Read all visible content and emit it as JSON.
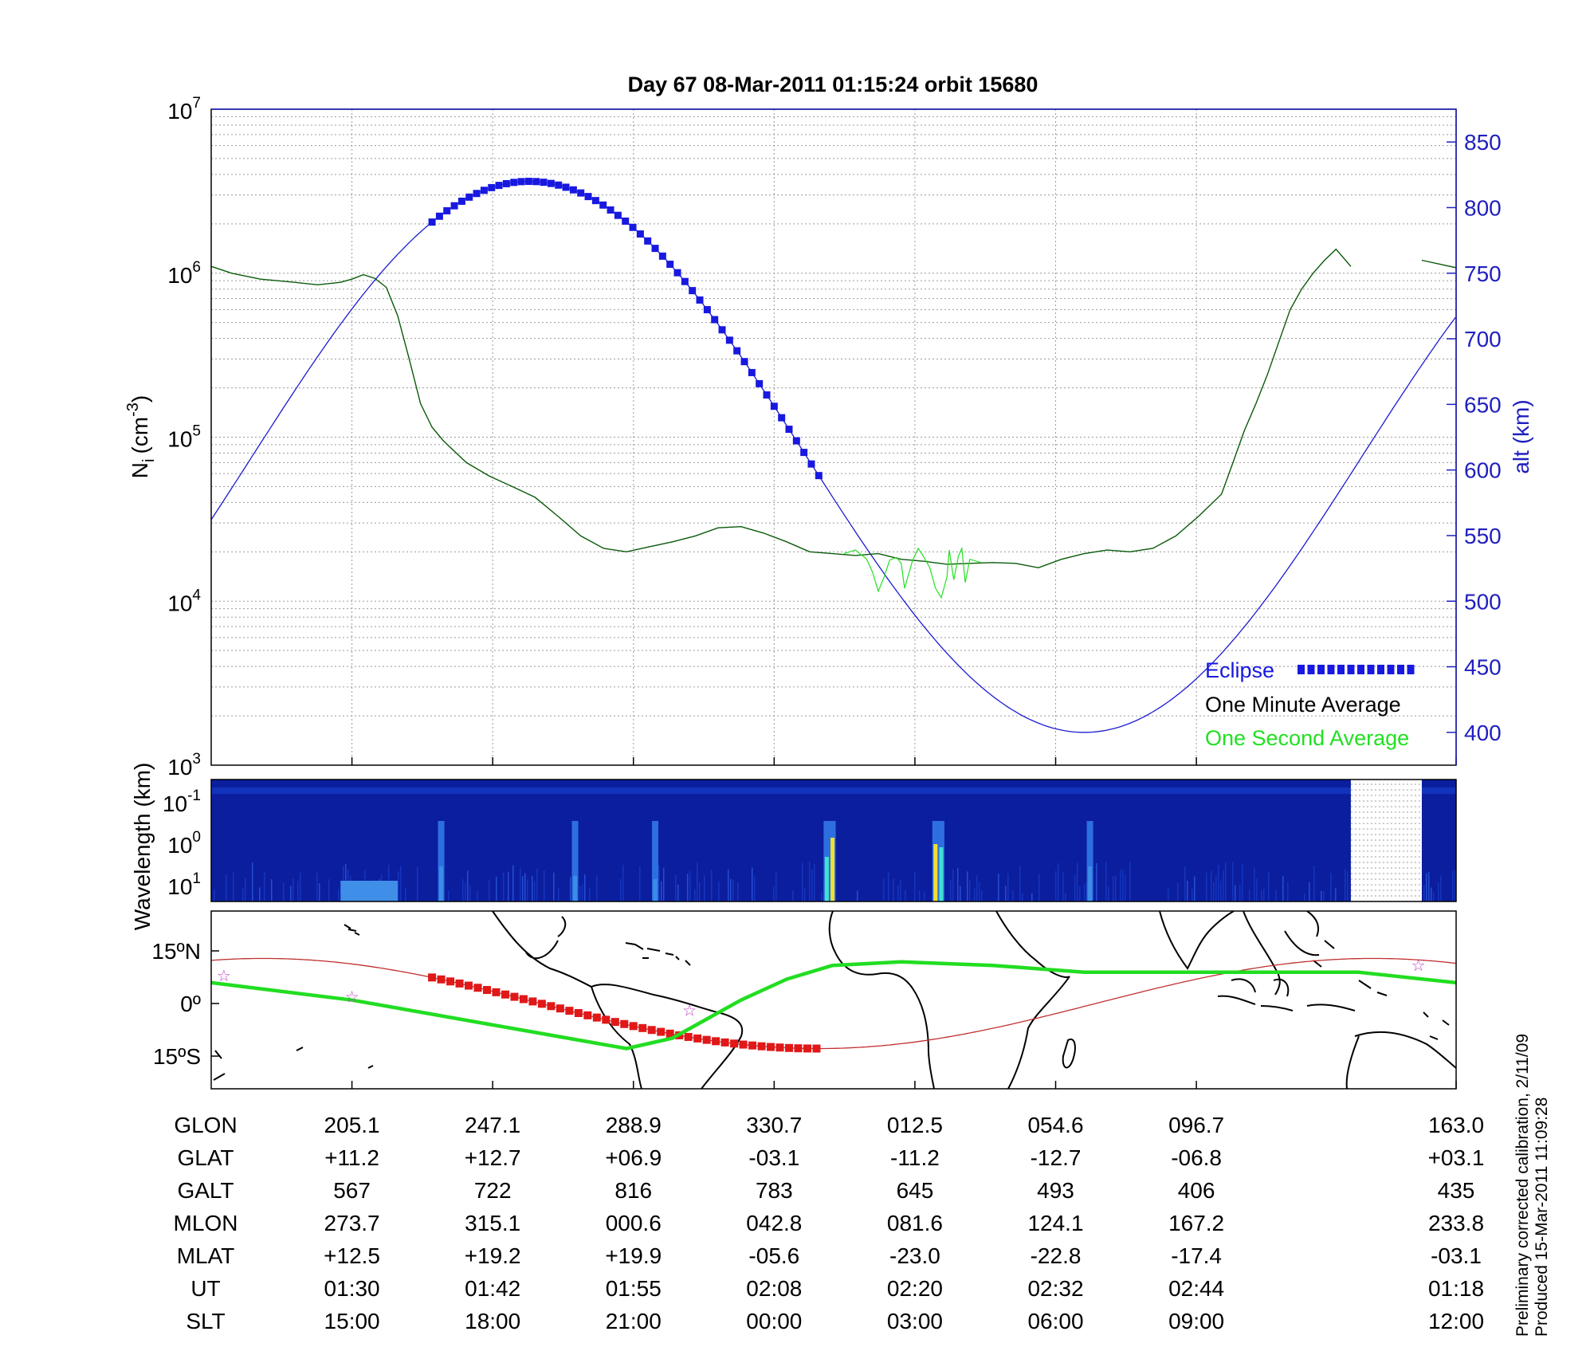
{
  "title": "Day 67  08-Mar-2011 01:15:24   orbit 15680",
  "colors": {
    "density": "#0a5a0a",
    "density_second": "#22e022",
    "altitude": "#1c1cd0",
    "eclipse": "#1818e0",
    "track": "#c03030",
    "track_eclipse": "#e01818",
    "magnetic_equator": "#22dd22",
    "stars": "#c040c0"
  },
  "chart_data": [
    {
      "type": "line",
      "name_left_axis": "N",
      "ylabel_left_sub": "i",
      "ylabel_left_unit": "(cm",
      "ylabel_left_exp": "-3",
      "ylabel_left_close": ")",
      "ylabel_right": "alt (km)",
      "y_scale": "log",
      "ylim": [
        1000,
        10000000
      ],
      "y_ticks": [
        {
          "base": "10",
          "exp": "3"
        },
        {
          "base": "10",
          "exp": "4"
        },
        {
          "base": "10",
          "exp": "5"
        },
        {
          "base": "10",
          "exp": "6"
        },
        {
          "base": "10",
          "exp": "7"
        }
      ],
      "y2lim": [
        375,
        875
      ],
      "y2_ticks": [
        "400",
        "450",
        "500",
        "550",
        "600",
        "650",
        "700",
        "750",
        "800",
        "850"
      ],
      "x_ticks_minutes": [
        0,
        12.3,
        24.6,
        36.9,
        49.2,
        61.5,
        73.8,
        96.5
      ],
      "xlim": [
        -12.3,
        96.5
      ],
      "grid": true,
      "legend_position": "bottom-right",
      "legend": [
        {
          "label": "Eclipse",
          "style": "eclipse"
        },
        {
          "label": "One Minute Average",
          "style": "minute"
        },
        {
          "label": "One Second Average",
          "style": "second"
        }
      ],
      "series": [
        {
          "style": "minute",
          "x": [
            -12.3,
            -10.5,
            -8,
            -5,
            -3,
            -1,
            0,
            1,
            2,
            3,
            4,
            5,
            6,
            7,
            8,
            10,
            12,
            14,
            16,
            18,
            20,
            22,
            24,
            26,
            28,
            30,
            32,
            34,
            36,
            38,
            40,
            42,
            44,
            46,
            48,
            50,
            52,
            54,
            56,
            58,
            60,
            62,
            64,
            66,
            68,
            70,
            72,
            74,
            76,
            77,
            78,
            79,
            80,
            81,
            82,
            83,
            84,
            85,
            86,
            87.3,
            93.5,
            96.5
          ],
          "y": [
            1100000,
            1000000,
            920000,
            880000,
            850000,
            880000,
            920000,
            980000,
            930000,
            820000,
            550000,
            300000,
            160000,
            115000,
            95000,
            70000,
            58000,
            50000,
            43000,
            33000,
            25000,
            21000,
            20000,
            21500,
            23000,
            25000,
            28000,
            28500,
            26000,
            23000,
            20000,
            19500,
            19000,
            19500,
            18000,
            17500,
            16800,
            17000,
            17200,
            17000,
            16000,
            18000,
            19500,
            20500,
            20000,
            21000,
            25000,
            33000,
            45000,
            70000,
            110000,
            160000,
            240000,
            380000,
            600000,
            800000,
            1000000,
            1200000,
            1400000,
            1100000,
            1200000,
            1080000
          ]
        },
        {
          "style": "second",
          "x": [
            43,
            44,
            45,
            45.5,
            46,
            46.5,
            47,
            47.6,
            48,
            48.3,
            49,
            49.5,
            50,
            50.5,
            51,
            51.5,
            52,
            52.2,
            52.6,
            53,
            53.3,
            53.6,
            54,
            55
          ],
          "y": [
            19500,
            20500,
            18000,
            15000,
            11500,
            14000,
            17800,
            18500,
            17000,
            12000,
            17800,
            21000,
            18500,
            16000,
            12000,
            10500,
            14000,
            20500,
            13500,
            18800,
            21000,
            13000,
            18000,
            17200
          ]
        },
        {
          "style": "altitude",
          "x_period_min": 97,
          "perigee_km": 400,
          "apogee_km": 820,
          "apogee_time_min": 15.5
        }
      ],
      "eclipse_span_min": [
        7,
        41
      ]
    },
    {
      "type": "heatmap",
      "ylabel": "Wavelength (km)",
      "y_ticks": [
        {
          "base": "10",
          "exp": "-1"
        },
        {
          "base": "10",
          "exp": "0"
        },
        {
          "base": "10",
          "exp": "1"
        }
      ],
      "data_gap_min": [
        87.3,
        93.5
      ],
      "bright_bands_min": [
        {
          "x": 7.8,
          "level": 0.55
        },
        {
          "x": 19.5,
          "level": 0.4
        },
        {
          "x": 26.5,
          "level": 0.35
        },
        {
          "x": 41.5,
          "level": 0.7
        },
        {
          "x": 42.0,
          "level": 1.0
        },
        {
          "x": 51.0,
          "level": 0.9
        },
        {
          "x": 51.5,
          "level": 0.85
        },
        {
          "x": 64.5,
          "level": 0.55
        }
      ]
    },
    {
      "type": "map",
      "y_ticks": [
        "15ºN",
        "0º",
        "15ºS"
      ],
      "glon_ticks": [
        205.1,
        247.1,
        288.9,
        330.7,
        12.5,
        54.6,
        96.7,
        163.0
      ],
      "glat_ticks": [
        11.2,
        12.7,
        6.9,
        -3.1,
        -11.2,
        -12.7,
        -6.8,
        3.1
      ]
    }
  ],
  "table": {
    "rows": [
      {
        "label": "GLON",
        "values": [
          "205.1",
          "247.1",
          "288.9",
          "330.7",
          "012.5",
          "054.6",
          "096.7",
          "163.0"
        ]
      },
      {
        "label": "GLAT",
        "values": [
          "+11.2",
          "+12.7",
          "+06.9",
          "-03.1",
          "-11.2",
          "-12.7",
          "-06.8",
          "+03.1"
        ]
      },
      {
        "label": "GALT",
        "values": [
          "567",
          "722",
          "816",
          "783",
          "645",
          "493",
          "406",
          "435"
        ]
      },
      {
        "label": "MLON",
        "values": [
          "273.7",
          "315.1",
          "000.6",
          "042.8",
          "081.6",
          "124.1",
          "167.2",
          "233.8"
        ]
      },
      {
        "label": "MLAT",
        "values": [
          "+12.5",
          "+19.2",
          "+19.9",
          "-05.6",
          "-23.0",
          "-22.8",
          "-17.4",
          "-03.1"
        ]
      },
      {
        "label": "UT",
        "values": [
          "01:30",
          "01:42",
          "01:55",
          "02:08",
          "02:20",
          "02:32",
          "02:44",
          "01:18"
        ]
      },
      {
        "label": "SLT",
        "values": [
          "15:00",
          "18:00",
          "21:00",
          "00:00",
          "03:00",
          "06:00",
          "09:00",
          "12:00"
        ]
      }
    ]
  },
  "footer": {
    "line1": "Preliminary corrected calibration, 2/11/09",
    "line2": "Produced 15-Mar-2011 11:09:28"
  }
}
